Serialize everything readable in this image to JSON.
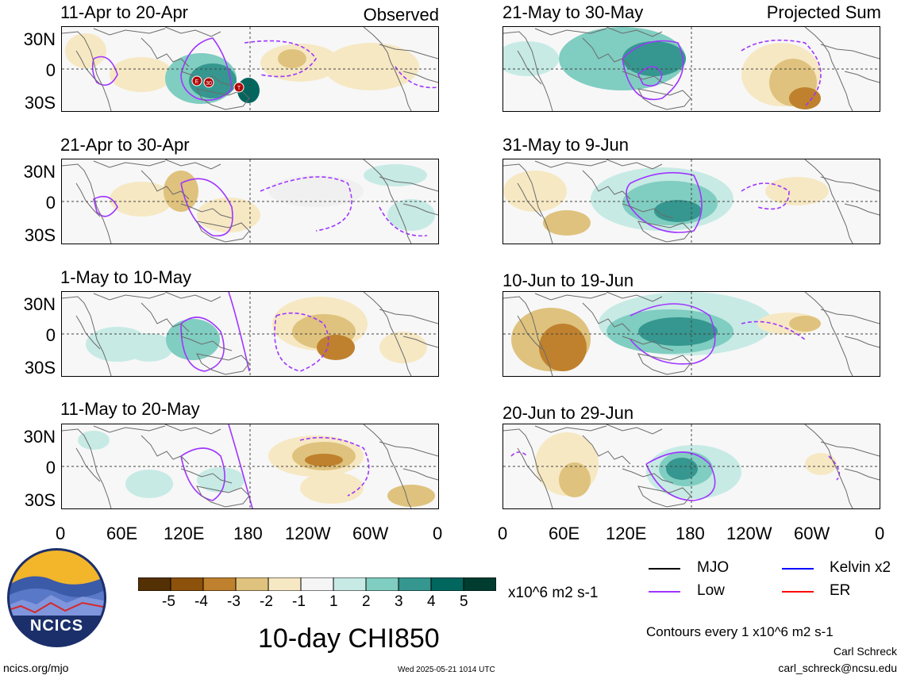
{
  "figure_title": "10-day CHI850",
  "panels": [
    {
      "title": "11-Apr to 20-Apr",
      "corner": "Observed"
    },
    {
      "title": "21-Apr to 30-Apr",
      "corner": ""
    },
    {
      "title": "1-May to 10-May",
      "corner": ""
    },
    {
      "title": "11-May to 20-May",
      "corner": ""
    },
    {
      "title": "21-May to 30-May",
      "corner": "Projected Sum"
    },
    {
      "title": "31-May to 9-Jun",
      "corner": ""
    },
    {
      "title": "10-Jun to 19-Jun",
      "corner": ""
    },
    {
      "title": "20-Jun to 29-Jun",
      "corner": ""
    }
  ],
  "lat_labels": [
    "30N",
    "0",
    "30S"
  ],
  "lon_labels": [
    "0",
    "60E",
    "120E",
    "180",
    "120W",
    "60W",
    "0"
  ],
  "colorbar": {
    "ticks": [
      "-5",
      "-4",
      "-3",
      "-2",
      "-1",
      "1",
      "2",
      "3",
      "4",
      "5"
    ],
    "units": "x10^6 m2 s-1",
    "colors": [
      "#543005",
      "#8c510a",
      "#bf812d",
      "#dfc27d",
      "#f6e8c3",
      "#f5f5f5",
      "#c7eae5",
      "#80cdc1",
      "#35978f",
      "#01665e",
      "#003c30"
    ]
  },
  "legend": {
    "items": [
      {
        "label": "MJO",
        "color": "#000000"
      },
      {
        "label": "Low",
        "color": "#a035ff"
      },
      {
        "label": "Kelvin x2",
        "color": "#0000ff"
      },
      {
        "label": "ER",
        "color": "#ff0000"
      }
    ],
    "contour_note": "Contours every 1 x10^6 m2 s-1"
  },
  "logo_text": "NCICS",
  "footer": {
    "left_url": "ncics.org/mjo",
    "timestamp": "Wed 2025-05-21 1014 UTC",
    "author": "Carl Schreck",
    "email": "carl_schreck@ncsu.edu"
  },
  "storm_markers": [
    "E",
    "30",
    "T"
  ],
  "chart_data": {
    "type": "heatmap",
    "variable": "10-day CHI850 anomaly",
    "units": "x10^6 m2 s-1",
    "color_levels": [
      -5,
      -4,
      -3,
      -2,
      -1,
      1,
      2,
      3,
      4,
      5
    ],
    "x_range": [
      "0",
      "0"
    ],
    "y_range": [
      "30S",
      "30N"
    ],
    "panels": [
      {
        "period": "11-Apr to 20-Apr",
        "source": "Observed"
      },
      {
        "period": "21-Apr to 30-Apr",
        "source": "Observed"
      },
      {
        "period": "1-May to 10-May",
        "source": "Observed"
      },
      {
        "period": "11-May to 20-May",
        "source": "Observed"
      },
      {
        "period": "21-May to 30-May",
        "source": "Projected Sum"
      },
      {
        "period": "31-May to 9-Jun",
        "source": "Projected Sum"
      },
      {
        "period": "10-Jun to 19-Jun",
        "source": "Projected Sum"
      },
      {
        "period": "20-Jun to 29-Jun",
        "source": "Projected Sum"
      }
    ]
  }
}
